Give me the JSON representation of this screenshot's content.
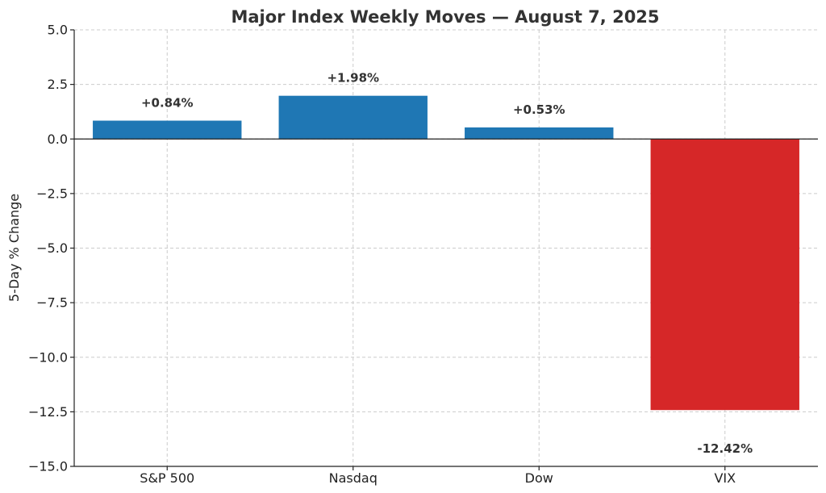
{
  "chart_data": {
    "type": "bar",
    "title": "Major Index Weekly Moves — August 7, 2025",
    "xlabel": "",
    "ylabel": "5-Day % Change",
    "categories": [
      "S&P 500",
      "Nasdaq",
      "Dow",
      "VIX"
    ],
    "values": [
      0.84,
      1.98,
      0.53,
      -12.42
    ],
    "data_labels": [
      "+0.84%",
      "+1.98%",
      "+0.53%",
      "-12.42%"
    ],
    "bar_colors": [
      "#1f77b4",
      "#1f77b4",
      "#1f77b4",
      "#d62728"
    ],
    "ylim": [
      -15.0,
      5.0
    ],
    "yticks": [
      5.0,
      2.5,
      0.0,
      -2.5,
      -5.0,
      -7.5,
      -10.0,
      -12.5,
      -15.0
    ],
    "ytick_labels": [
      "5.0",
      "2.5",
      "0.0",
      "−2.5",
      "−5.0",
      "−7.5",
      "−10.0",
      "−12.5",
      "−15.0"
    ],
    "grid": true,
    "zero_line": true
  }
}
